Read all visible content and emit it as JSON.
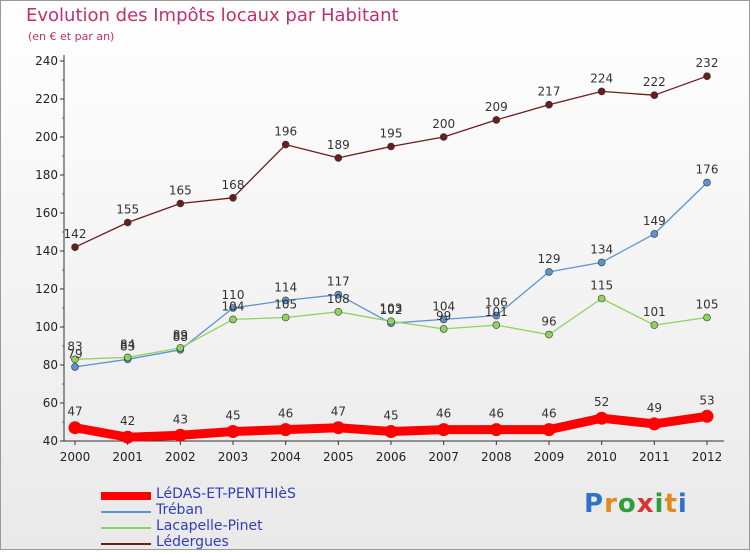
{
  "page": {
    "title": "Evolution des Impôts locaux par Habitant",
    "subtitle": "(en € et par an)"
  },
  "logo": {
    "letters": [
      "P",
      "r",
      "o",
      "x",
      "i",
      "t",
      "i"
    ]
  },
  "chart_data": {
    "type": "line",
    "title": "Evolution des Impôts locaux par Habitant",
    "subtitle": "(en € et par an)",
    "xlabel": "",
    "ylabel": "",
    "ylim": [
      40,
      240
    ],
    "y_ticks": [
      40,
      60,
      80,
      100,
      120,
      140,
      160,
      180,
      200,
      220,
      240
    ],
    "grid": false,
    "legend_position": "bottom-left",
    "categories": [
      "2000",
      "2001",
      "2002",
      "2003",
      "2004",
      "2005",
      "2006",
      "2007",
      "2008",
      "2009",
      "2010",
      "2011",
      "2012"
    ],
    "series": [
      {
        "name": "LéDAS-ET-PENTHIèS",
        "color": "#ff0000",
        "values": [
          47,
          42,
          43,
          45,
          46,
          47,
          45,
          46,
          46,
          46,
          52,
          49,
          53
        ],
        "labels": [
          "47",
          "42",
          "43",
          "45",
          "46",
          "47",
          "45",
          "46",
          "46",
          "46",
          "52",
          "49",
          "53"
        ]
      },
      {
        "name": "Tréban",
        "color": "#5a95cf",
        "values": [
          79,
          83,
          88,
          110,
          114,
          117,
          102,
          104,
          106,
          129,
          134,
          149,
          176
        ],
        "labels": [
          "79",
          "83",
          "88",
          "110",
          "114",
          "117",
          "102",
          "104",
          "106",
          "129",
          "134",
          "149",
          "176"
        ]
      },
      {
        "name": "Lacapelle-Pinet",
        "color": "#8fd35f",
        "values": [
          83,
          84,
          89,
          104,
          105,
          108,
          103,
          99,
          101,
          96,
          115,
          101,
          105
        ],
        "labels": [
          "83",
          "84",
          "89",
          "104",
          "105",
          "108",
          "103",
          "99",
          "101",
          "96",
          "115",
          "101",
          "105"
        ]
      },
      {
        "name": "Lédergues",
        "color": "#6b1d1d",
        "values": [
          142,
          155,
          165,
          168,
          196,
          189,
          195,
          200,
          209,
          217,
          224,
          222,
          232
        ],
        "labels": [
          "142",
          "155",
          "165",
          "168",
          "196",
          "189",
          "195",
          "200",
          "209",
          "217",
          "224",
          "222",
          "232"
        ]
      }
    ]
  }
}
